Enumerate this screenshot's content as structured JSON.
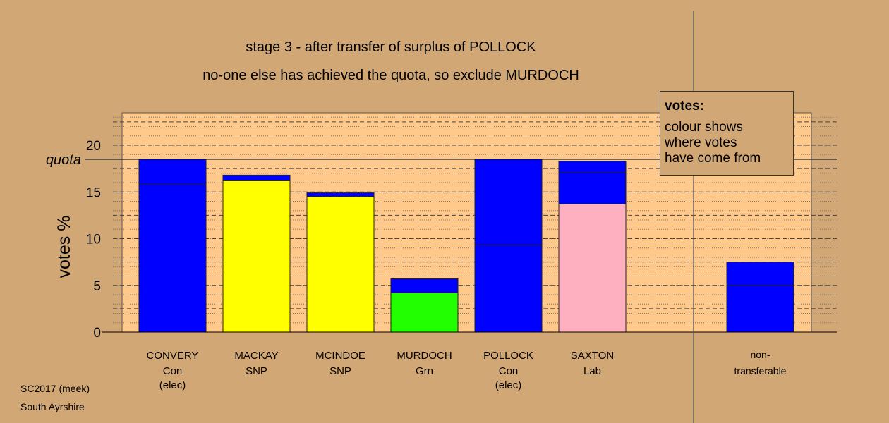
{
  "titles": {
    "line1": "stage 3 - after transfer of surplus of POLLOCK",
    "line2": "no-one else has achieved the quota, so exclude MURDOCH"
  },
  "legend": {
    "title": "votes:",
    "lines": [
      "colour shows",
      "where votes",
      "have come from"
    ]
  },
  "footer": {
    "line1": "SC2017 (meek)",
    "line2": "South Ayrshire"
  },
  "chart_data": {
    "type": "bar",
    "stacked": true,
    "ylabel": "votes %",
    "ylim": [
      0,
      23.5
    ],
    "yticks": [
      0,
      5,
      10,
      15,
      20
    ],
    "quota": 18.5,
    "quota_label": "quota",
    "grid": true,
    "colors": {
      "background": "#d2a776",
      "plot_background": "#ffc98c",
      "Con": "#0000ff",
      "SNP": "#ffff00",
      "Grn": "#22ff00",
      "Lab": "#ffb0c0"
    },
    "candidates": [
      {
        "name": "CONVERY",
        "party": "Con",
        "status": "(elec)",
        "segments": [
          {
            "color": "#0000ff",
            "value": 15.8
          },
          {
            "color": "#0000ff",
            "value": 2.7
          }
        ]
      },
      {
        "name": "MACKAY",
        "party": "SNP",
        "status": "",
        "segments": [
          {
            "color": "#ffff00",
            "value": 16.2
          },
          {
            "color": "#0000ff",
            "value": 0.6
          }
        ]
      },
      {
        "name": "MCINDOE",
        "party": "SNP",
        "status": "",
        "segments": [
          {
            "color": "#ffff00",
            "value": 14.5
          },
          {
            "color": "#0000ff",
            "value": 0.4
          }
        ]
      },
      {
        "name": "MURDOCH",
        "party": "Grn",
        "status": "",
        "segments": [
          {
            "color": "#22ff00",
            "value": 4.2
          },
          {
            "color": "#0000ff",
            "value": 1.5
          }
        ]
      },
      {
        "name": "POLLOCK",
        "party": "Con",
        "status": "(elec)",
        "segments": [
          {
            "color": "#0000ff",
            "value": 9.3
          },
          {
            "color": "#0000ff",
            "value": 9.2
          }
        ]
      },
      {
        "name": "SAXTON",
        "party": "Lab",
        "status": "",
        "segments": [
          {
            "color": "#ffb0c0",
            "value": 13.7
          },
          {
            "color": "#0000ff",
            "value": 3.4
          },
          {
            "color": "#0000ff",
            "value": 1.2
          }
        ]
      }
    ],
    "nontransferable": {
      "label_line1": "non-",
      "label_line2": "transferable",
      "segments": [
        {
          "color": "#0000ff",
          "value": 5.0
        },
        {
          "color": "#0000ff",
          "value": 2.5
        }
      ]
    }
  }
}
